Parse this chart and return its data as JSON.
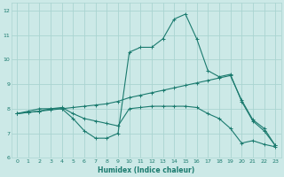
{
  "xlabel": "Humidex (Indice chaleur)",
  "ylabel": "",
  "xlim": [
    -0.5,
    23.5
  ],
  "ylim": [
    6.0,
    12.3
  ],
  "yticks": [
    6,
    7,
    8,
    9,
    10,
    11,
    12
  ],
  "xticks": [
    0,
    1,
    2,
    3,
    4,
    5,
    6,
    7,
    8,
    9,
    10,
    11,
    12,
    13,
    14,
    15,
    16,
    17,
    18,
    19,
    20,
    21,
    22,
    23
  ],
  "bg_color": "#cce9e7",
  "grid_color": "#aad4d1",
  "line_color": "#1a7a6e",
  "curve1_x": [
    0,
    1,
    2,
    3,
    4,
    5,
    6,
    7,
    8,
    9,
    10,
    11,
    12,
    13,
    14,
    15,
    16,
    17,
    18,
    19,
    20,
    21,
    22,
    23
  ],
  "curve1_y": [
    7.8,
    7.9,
    8.0,
    8.0,
    8.0,
    7.6,
    7.1,
    6.8,
    6.8,
    7.0,
    10.3,
    10.5,
    10.5,
    10.85,
    11.65,
    11.85,
    10.85,
    9.55,
    9.3,
    9.4,
    8.3,
    7.5,
    7.1,
    6.5
  ],
  "curve2_x": [
    0,
    1,
    2,
    3,
    4,
    5,
    6,
    7,
    8,
    9,
    10,
    11,
    12,
    13,
    14,
    15,
    16,
    17,
    18,
    19,
    20,
    21,
    22,
    23
  ],
  "curve2_y": [
    7.8,
    7.85,
    7.9,
    7.95,
    8.0,
    8.05,
    8.1,
    8.15,
    8.2,
    8.3,
    8.45,
    8.55,
    8.65,
    8.75,
    8.85,
    8.95,
    9.05,
    9.15,
    9.25,
    9.35,
    8.35,
    7.55,
    7.2,
    6.5
  ],
  "curve3_x": [
    0,
    1,
    2,
    3,
    4,
    5,
    6,
    7,
    8,
    9,
    10,
    11,
    12,
    13,
    14,
    15,
    16,
    17,
    18,
    19,
    20,
    21,
    22,
    23
  ],
  "curve3_y": [
    7.8,
    7.85,
    7.9,
    8.0,
    8.05,
    7.8,
    7.6,
    7.5,
    7.4,
    7.3,
    8.0,
    8.05,
    8.1,
    8.1,
    8.1,
    8.1,
    8.05,
    7.8,
    7.6,
    7.2,
    6.6,
    6.7,
    6.55,
    6.45
  ]
}
